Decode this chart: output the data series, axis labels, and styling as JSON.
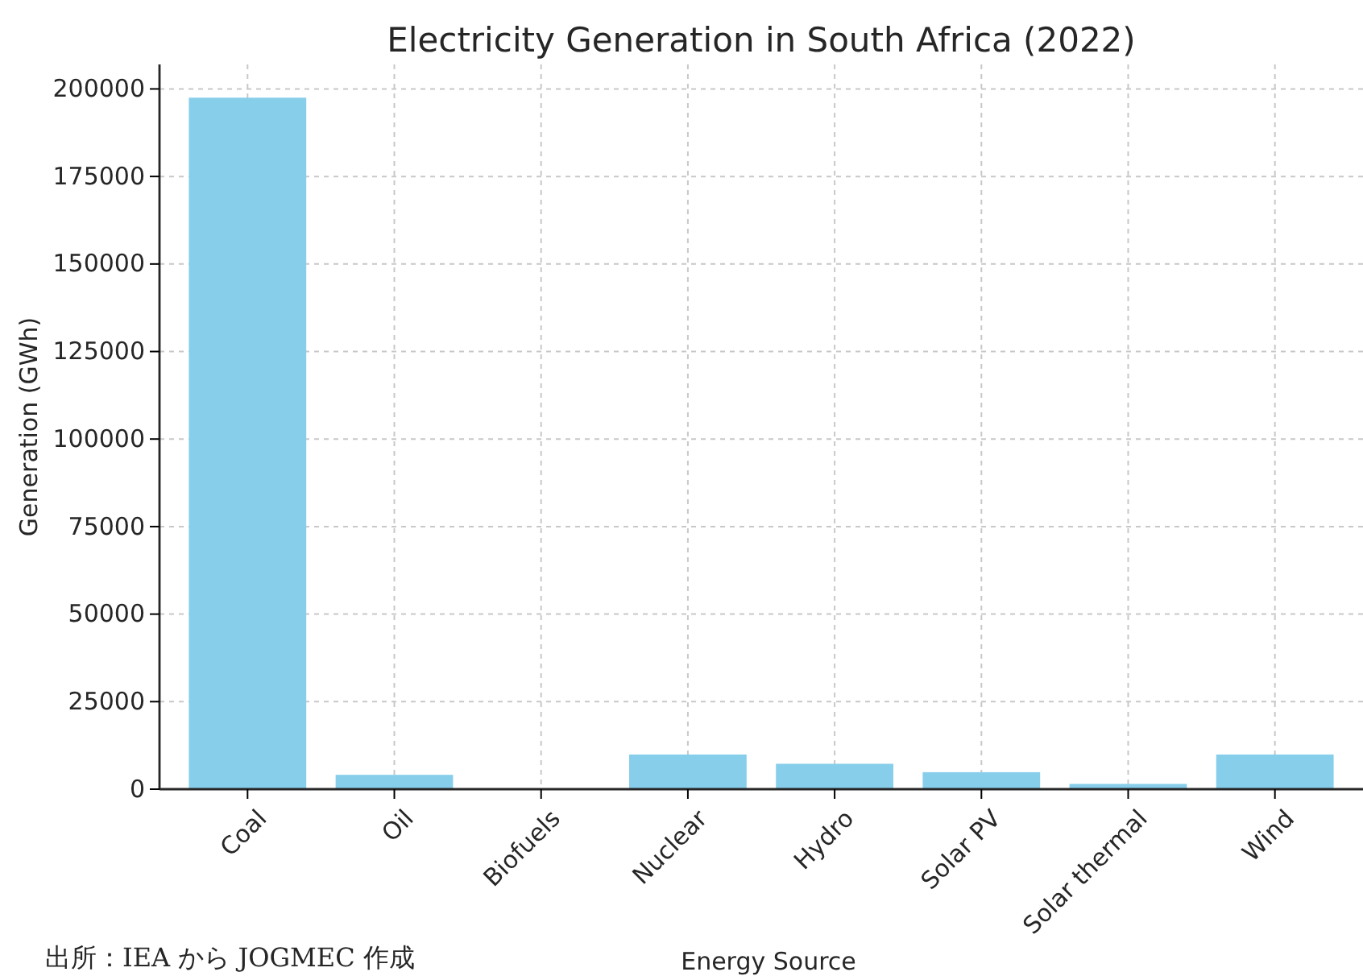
{
  "chart_data": {
    "type": "bar",
    "title": "Electricity Generation in South Africa (2022)",
    "xlabel": "Energy Source",
    "ylabel": "Generation (GWh)",
    "categories": [
      "Coal",
      "Oil",
      "Biofuels",
      "Nuclear",
      "Hydro",
      "Solar PV",
      "Solar thermal",
      "Wind"
    ],
    "values": [
      197500,
      4100,
      0,
      9900,
      7250,
      4850,
      1500,
      9900
    ],
    "color": "#87ceeb",
    "ylim": [
      0,
      207000
    ],
    "yticks": [
      0,
      25000,
      50000,
      75000,
      100000,
      125000,
      150000,
      175000,
      200000
    ],
    "grid": true,
    "annotations": [
      "出所：IEA から JOGMEC 作成"
    ]
  }
}
